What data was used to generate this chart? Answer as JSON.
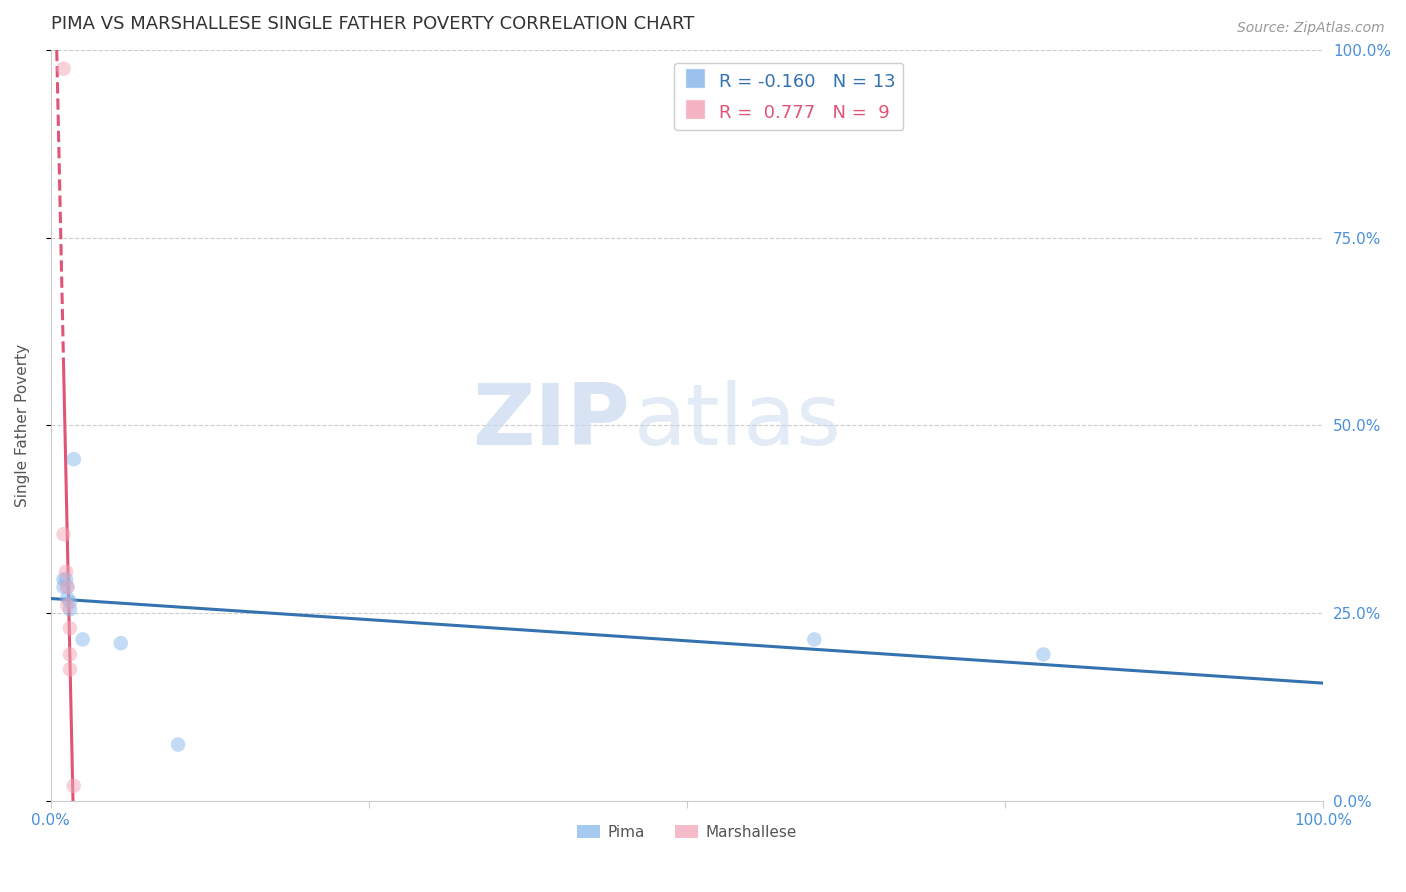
{
  "title": "PIMA VS MARSHALLESE SINGLE FATHER POVERTY CORRELATION CHART",
  "source": "Source: ZipAtlas.com",
  "ylabel": "Single Father Poverty",
  "watermark_zip": "ZIP",
  "watermark_atlas": "atlas",
  "xlim": [
    0.0,
    1.0
  ],
  "ylim": [
    0.0,
    1.0
  ],
  "ytick_positions": [
    0.0,
    0.25,
    0.5,
    0.75,
    1.0
  ],
  "ytick_labels_right": [
    "0.0%",
    "25.0%",
    "50.0%",
    "75.0%",
    "100.0%"
  ],
  "xtick_positions": [
    0.0,
    0.25,
    0.5,
    0.75,
    1.0
  ],
  "xtick_labels": [
    "0.0%",
    "",
    "",
    "",
    "100.0%"
  ],
  "pima_color": "#89b8ea",
  "marshallese_color": "#f4a5b8",
  "trend_pima_color": "#3572b0",
  "trend_marshallese_color": "#e05575",
  "pima_R": "-0.160",
  "pima_N": "13",
  "marshallese_R": "0.777",
  "marshallese_N": "9",
  "pima_x": [
    0.01,
    0.01,
    0.012,
    0.013,
    0.013,
    0.015,
    0.015,
    0.018,
    0.025,
    0.055,
    0.6,
    0.78,
    0.1
  ],
  "pima_y": [
    0.295,
    0.285,
    0.295,
    0.285,
    0.27,
    0.265,
    0.255,
    0.455,
    0.215,
    0.21,
    0.215,
    0.195,
    0.075
  ],
  "marshallese_x": [
    0.01,
    0.01,
    0.012,
    0.013,
    0.013,
    0.015,
    0.015,
    0.015,
    0.018
  ],
  "marshallese_y": [
    0.975,
    0.355,
    0.305,
    0.285,
    0.26,
    0.23,
    0.195,
    0.175,
    0.02
  ],
  "background_color": "#ffffff",
  "grid_color": "#cccccc",
  "axis_color": "#cccccc",
  "title_color": "#333333",
  "label_color": "#555555",
  "right_label_color": "#4a90d9",
  "legend_fontsize": 13,
  "title_fontsize": 13,
  "marker_size": 110,
  "marker_alpha": 0.5,
  "trend_linewidth": 2.2
}
